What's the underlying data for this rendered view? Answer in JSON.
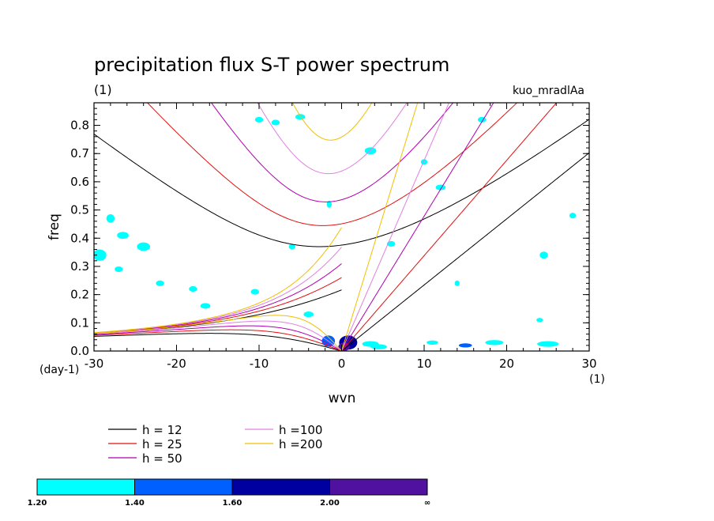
{
  "chart_data": {
    "type": "contour",
    "title": "precipitation flux S-T power spectrum",
    "units": "(1)",
    "run_label": "kuo_mradlAa",
    "xlabel": "wvn",
    "ylabel": "freq",
    "x_unit": "(1)",
    "y_unit": "(day-1)",
    "xlim": [
      -30,
      30
    ],
    "ylim": [
      0,
      0.88
    ],
    "xticks": [
      -30,
      -20,
      -10,
      0,
      10,
      20,
      30
    ],
    "yticks": [
      0.0,
      0.1,
      0.2,
      0.3,
      0.4,
      0.5,
      0.6,
      0.7,
      0.8
    ],
    "xtick_labels": [
      "-30",
      "-20",
      "-10",
      "0",
      "10",
      "20",
      "30"
    ],
    "ytick_labels": [
      "0.0",
      "0.1",
      "0.2",
      "0.3",
      "0.4",
      "0.5",
      "0.6",
      "0.7",
      "0.8"
    ],
    "dispersion_curves": [
      {
        "name": "h = 12",
        "h": 12,
        "color": "#000000"
      },
      {
        "name": "h = 25",
        "h": 25,
        "color": "#e01010"
      },
      {
        "name": "h = 50",
        "h": 50,
        "color": "#b000b0"
      },
      {
        "name": "h =100",
        "h": 100,
        "color": "#e080e0"
      },
      {
        "name": "h =200",
        "h": 200,
        "color": "#f0c000"
      }
    ],
    "colorbar": {
      "levels": [
        "1.20",
        "1.40",
        "1.60",
        "2.00",
        "∞"
      ],
      "colors": [
        "#00ffff",
        "#0060ff",
        "#0000a0",
        "#5010a0"
      ]
    },
    "contour_blobs": [
      {
        "x": 0.8,
        "y": 0.03,
        "w": 2.2,
        "h": 0.05,
        "level": 2
      },
      {
        "x": 0.3,
        "y": 0.015,
        "w": 1.4,
        "h": 0.03,
        "level": 3
      },
      {
        "x": -1.6,
        "y": 0.035,
        "w": 1.6,
        "h": 0.04,
        "level": 1
      },
      {
        "x": 3.5,
        "y": 0.025,
        "w": 2.0,
        "h": 0.02,
        "level": 0
      },
      {
        "x": -29.3,
        "y": 0.34,
        "w": 0.8,
        "h": 0.025,
        "level": 1
      },
      {
        "x": -29.3,
        "y": 0.34,
        "w": 1.6,
        "h": 0.04,
        "level": 0
      },
      {
        "x": -28.0,
        "y": 0.47,
        "w": 1.0,
        "h": 0.03,
        "level": 0
      },
      {
        "x": -26.5,
        "y": 0.41,
        "w": 1.4,
        "h": 0.025,
        "level": 0
      },
      {
        "x": -24.0,
        "y": 0.37,
        "w": 1.6,
        "h": 0.03,
        "level": 0
      },
      {
        "x": -27.0,
        "y": 0.29,
        "w": 1.0,
        "h": 0.02,
        "level": 0
      },
      {
        "x": -22.0,
        "y": 0.24,
        "w": 1.0,
        "h": 0.02,
        "level": 0
      },
      {
        "x": -16.5,
        "y": 0.16,
        "w": 1.2,
        "h": 0.02,
        "level": 0
      },
      {
        "x": -18.0,
        "y": 0.22,
        "w": 1.0,
        "h": 0.02,
        "level": 0
      },
      {
        "x": -10.5,
        "y": 0.21,
        "w": 1.0,
        "h": 0.02,
        "level": 0
      },
      {
        "x": -4.0,
        "y": 0.13,
        "w": 1.2,
        "h": 0.02,
        "level": 0
      },
      {
        "x": -8.0,
        "y": 0.81,
        "w": 1.0,
        "h": 0.02,
        "level": 0
      },
      {
        "x": -10.0,
        "y": 0.82,
        "w": 1.0,
        "h": 0.02,
        "level": 0
      },
      {
        "x": -5.0,
        "y": 0.83,
        "w": 1.2,
        "h": 0.02,
        "level": 0
      },
      {
        "x": 3.5,
        "y": 0.71,
        "w": 1.4,
        "h": 0.025,
        "level": 0
      },
      {
        "x": 6.0,
        "y": 0.38,
        "w": 1.0,
        "h": 0.02,
        "level": 0
      },
      {
        "x": 12.0,
        "y": 0.58,
        "w": 1.2,
        "h": 0.02,
        "level": 0
      },
      {
        "x": 17.0,
        "y": 0.82,
        "w": 1.0,
        "h": 0.02,
        "level": 0
      },
      {
        "x": -1.5,
        "y": 0.52,
        "w": 0.6,
        "h": 0.025,
        "level": 0
      },
      {
        "x": 24.5,
        "y": 0.34,
        "w": 1.0,
        "h": 0.025,
        "level": 0
      },
      {
        "x": 28.0,
        "y": 0.48,
        "w": 0.8,
        "h": 0.02,
        "level": 0
      },
      {
        "x": 4.5,
        "y": 0.015,
        "w": 2.0,
        "h": 0.018,
        "level": 0
      },
      {
        "x": 18.5,
        "y": 0.03,
        "w": 2.2,
        "h": 0.018,
        "level": 0
      },
      {
        "x": 25.0,
        "y": 0.025,
        "w": 2.6,
        "h": 0.02,
        "level": 0
      },
      {
        "x": 15.0,
        "y": 0.02,
        "w": 1.6,
        "h": 0.015,
        "level": 1
      },
      {
        "x": 11.0,
        "y": 0.03,
        "w": 1.4,
        "h": 0.015,
        "level": 0
      },
      {
        "x": 24.0,
        "y": 0.11,
        "w": 0.8,
        "h": 0.015,
        "level": 0
      },
      {
        "x": -6.0,
        "y": 0.37,
        "w": 0.8,
        "h": 0.02,
        "level": 0
      },
      {
        "x": 10.0,
        "y": 0.67,
        "w": 0.8,
        "h": 0.02,
        "level": 0
      },
      {
        "x": 14.0,
        "y": 0.24,
        "w": 0.6,
        "h": 0.02,
        "level": 0
      }
    ]
  }
}
